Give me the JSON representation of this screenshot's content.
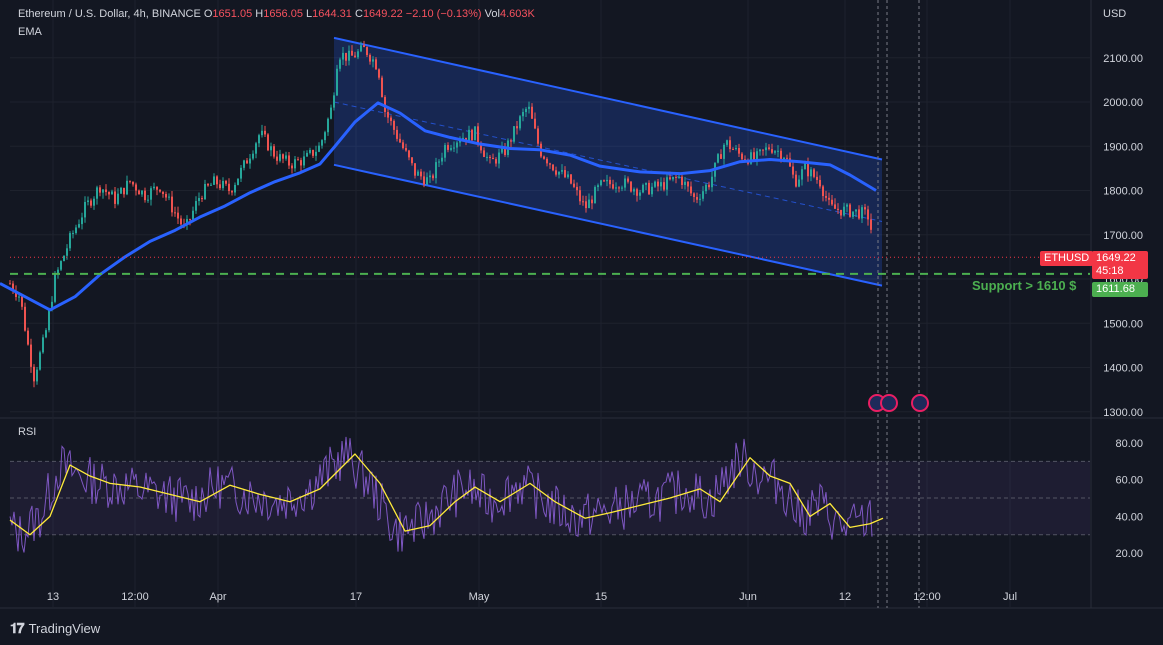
{
  "header": {
    "symbol": "Ethereum / U.S. Dollar, 4h, BINANCE",
    "o_label": "O",
    "o_value": "1651.05",
    "h_label": "H",
    "h_value": "1656.05",
    "l_label": "L",
    "l_value": "1644.31",
    "c_label": "C",
    "c_value": "1649.22",
    "change": "−2.10 (−0.13%)",
    "vol_label": "Vol",
    "vol_value": "4.603K"
  },
  "indicators": {
    "ema": "EMA",
    "rsi": "RSI"
  },
  "currency": "USD",
  "price_tag": {
    "symbol": "ETHUSD",
    "price": "1649.22",
    "countdown": "45:18"
  },
  "support": {
    "label": "Support > 1610 $",
    "value": "1611.68"
  },
  "brand": "TradingView",
  "colors": {
    "background": "#131722",
    "up": "#26a69a",
    "down": "#ef5350",
    "ema": "#2962ff",
    "channel": "#2962ff",
    "support": "#4caf50",
    "rsi": "#7e57c2",
    "rsi_ma": "#ffeb3b",
    "price_tag": "#f23645"
  },
  "chart_data": [
    {
      "type": "candlestick",
      "title": "Ethereum / U.S. Dollar, 4h, BINANCE",
      "x_tick_labels": [
        "13",
        "12:00",
        "Apr",
        "17",
        "May",
        "15",
        "Jun",
        "12",
        "12:00",
        "Jul"
      ],
      "y_tick_labels": [
        "1300.00",
        "1400.00",
        "1500.00",
        "1600.00",
        "1700.00",
        "1800.00",
        "1900.00",
        "2000.00",
        "2100.00"
      ],
      "ylim": [
        1290,
        2140
      ],
      "last_price": 1649.22,
      "ema_line": [
        [
          0,
          1590
        ],
        [
          25,
          1560
        ],
        [
          50,
          1530
        ],
        [
          75,
          1560
        ],
        [
          100,
          1610
        ],
        [
          125,
          1650
        ],
        [
          150,
          1685
        ],
        [
          175,
          1710
        ],
        [
          200,
          1740
        ],
        [
          225,
          1765
        ],
        [
          250,
          1795
        ],
        [
          275,
          1820
        ],
        [
          300,
          1840
        ],
        [
          320,
          1860
        ],
        [
          335,
          1900
        ],
        [
          355,
          1955
        ],
        [
          378,
          1998
        ],
        [
          400,
          1975
        ],
        [
          425,
          1935
        ],
        [
          450,
          1920
        ],
        [
          480,
          1905
        ],
        [
          510,
          1895
        ],
        [
          540,
          1892
        ],
        [
          570,
          1880
        ],
        [
          600,
          1855
        ],
        [
          640,
          1842
        ],
        [
          680,
          1838
        ],
        [
          710,
          1845
        ],
        [
          740,
          1865
        ],
        [
          770,
          1870
        ],
        [
          800,
          1865
        ],
        [
          830,
          1858
        ],
        [
          850,
          1835
        ],
        [
          876,
          1800
        ]
      ],
      "channel_upper": [
        [
          334,
          2145
        ],
        [
          882,
          1870
        ]
      ],
      "channel_lower": [
        [
          334,
          1858
        ],
        [
          882,
          1585
        ]
      ],
      "channel_mid": [
        [
          334,
          2000
        ],
        [
          882,
          1730
        ]
      ],
      "support_level": 1611.68,
      "grid": true
    },
    {
      "type": "line",
      "title": "RSI",
      "y_tick_labels": [
        "20.00",
        "40.00",
        "60.00",
        "80.00"
      ],
      "ylim": [
        10,
        90
      ],
      "overbought": 70,
      "oversold": 30,
      "midline": 50,
      "rsi_ma": [
        [
          0,
          38
        ],
        [
          20,
          30
        ],
        [
          40,
          40
        ],
        [
          60,
          68
        ],
        [
          80,
          62
        ],
        [
          100,
          58
        ],
        [
          130,
          56
        ],
        [
          160,
          52
        ],
        [
          190,
          48
        ],
        [
          220,
          57
        ],
        [
          250,
          52
        ],
        [
          280,
          48
        ],
        [
          310,
          55
        ],
        [
          345,
          74
        ],
        [
          370,
          58
        ],
        [
          395,
          32
        ],
        [
          420,
          35
        ],
        [
          445,
          48
        ],
        [
          465,
          56
        ],
        [
          490,
          48
        ],
        [
          520,
          58
        ],
        [
          545,
          48
        ],
        [
          575,
          39
        ],
        [
          600,
          42
        ],
        [
          630,
          46
        ],
        [
          660,
          50
        ],
        [
          690,
          55
        ],
        [
          710,
          48
        ],
        [
          740,
          72
        ],
        [
          760,
          62
        ],
        [
          780,
          58
        ],
        [
          800,
          40
        ],
        [
          820,
          47
        ],
        [
          840,
          34
        ],
        [
          860,
          36
        ],
        [
          873,
          39
        ]
      ],
      "rsi_last": 38
    }
  ]
}
